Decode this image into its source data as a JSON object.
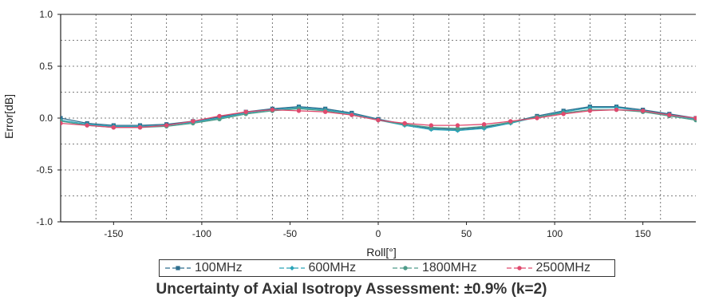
{
  "chart_data": {
    "type": "line",
    "xlabel": "Roll[°]",
    "ylabel": "Error[dB]",
    "xlim": [
      -180,
      180
    ],
    "ylim": [
      -1.0,
      1.0
    ],
    "xticks": [
      -150,
      -100,
      -50,
      0,
      50,
      100,
      150
    ],
    "yticks": [
      -1.0,
      -0.5,
      0.0,
      0.5,
      1.0
    ],
    "ytick_labels": [
      "-1.0",
      "-0.5",
      "0.0",
      "0.5",
      "1.0"
    ],
    "grid": true,
    "legend_position": "bottom",
    "x": [
      -180,
      -165,
      -150,
      -135,
      -120,
      -105,
      -90,
      -75,
      -60,
      -45,
      -30,
      -15,
      0,
      15,
      30,
      45,
      60,
      75,
      90,
      105,
      120,
      135,
      150,
      165,
      180
    ],
    "series": [
      {
        "name": "100MHz",
        "color": "#2e6e8e",
        "marker": "square",
        "values": [
          0.0,
          -0.05,
          -0.07,
          -0.07,
          -0.06,
          -0.03,
          0.01,
          0.06,
          0.09,
          0.11,
          0.09,
          0.05,
          -0.01,
          -0.06,
          -0.1,
          -0.11,
          -0.09,
          -0.04,
          0.02,
          0.07,
          0.11,
          0.11,
          0.08,
          0.04,
          0.0
        ]
      },
      {
        "name": "600MHz",
        "color": "#2aa4b8",
        "marker": "diamond",
        "values": [
          -0.02,
          -0.06,
          -0.08,
          -0.08,
          -0.07,
          -0.04,
          0.0,
          0.05,
          0.08,
          0.1,
          0.08,
          0.04,
          -0.02,
          -0.07,
          -0.11,
          -0.12,
          -0.1,
          -0.05,
          0.01,
          0.06,
          0.1,
          0.1,
          0.07,
          0.03,
          -0.01
        ]
      },
      {
        "name": "1800MHz",
        "color": "#4f9c8a",
        "marker": "circle",
        "values": [
          -0.03,
          -0.07,
          -0.09,
          -0.09,
          -0.08,
          -0.05,
          -0.01,
          0.04,
          0.07,
          0.09,
          0.07,
          0.03,
          -0.02,
          -0.06,
          -0.09,
          -0.1,
          -0.08,
          -0.04,
          0.01,
          0.05,
          0.08,
          0.08,
          0.06,
          0.02,
          -0.02
        ]
      },
      {
        "name": "2500MHz",
        "color": "#e04a6e",
        "marker": "circle",
        "values": [
          -0.05,
          -0.07,
          -0.09,
          -0.09,
          -0.07,
          -0.03,
          0.02,
          0.06,
          0.08,
          0.07,
          0.06,
          0.03,
          -0.02,
          -0.05,
          -0.07,
          -0.07,
          -0.06,
          -0.03,
          0.0,
          0.04,
          0.07,
          0.08,
          0.07,
          0.03,
          0.0
        ]
      }
    ]
  },
  "caption": "Uncertainty of Axial Isotropy Assessment: ±0.9% (k=2)"
}
